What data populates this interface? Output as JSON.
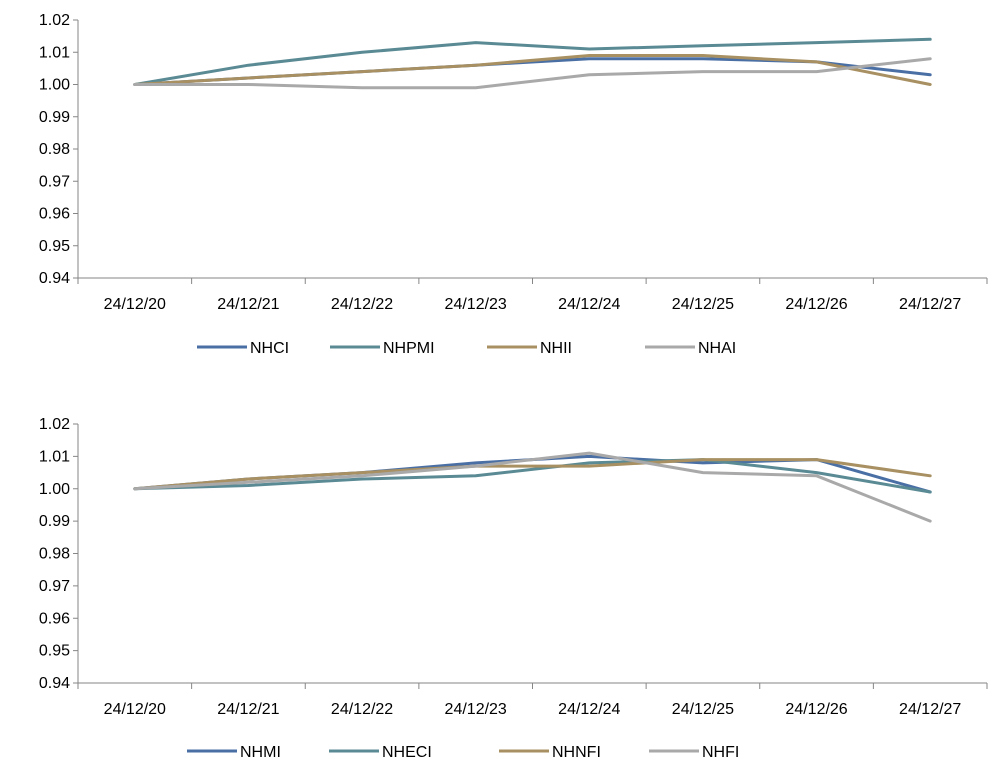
{
  "chart_data": [
    {
      "type": "line",
      "categories": [
        "24/12/20",
        "24/12/21",
        "24/12/22",
        "24/12/23",
        "24/12/24",
        "24/12/25",
        "24/12/26",
        "24/12/27"
      ],
      "ylim": [
        0.94,
        1.02
      ],
      "yticks": [
        0.94,
        0.95,
        0.96,
        0.97,
        0.98,
        0.99,
        1.0,
        1.01,
        1.02
      ],
      "ytick_labels": [
        "0.94",
        "0.95",
        "0.96",
        "0.97",
        "0.98",
        "0.99",
        "1.00",
        "1.01",
        "1.02"
      ],
      "grid": false,
      "legend_position": "bottom",
      "series": [
        {
          "name": "NHCI",
          "color": "#4a6fa5",
          "values": [
            1.0,
            1.002,
            1.004,
            1.006,
            1.008,
            1.008,
            1.007,
            1.003
          ]
        },
        {
          "name": "NHPMI",
          "color": "#5a8a94",
          "values": [
            1.0,
            1.006,
            1.01,
            1.013,
            1.011,
            1.012,
            1.013,
            1.014
          ]
        },
        {
          "name": "NHII",
          "color": "#a89062",
          "values": [
            1.0,
            1.002,
            1.004,
            1.006,
            1.009,
            1.009,
            1.007,
            1.0
          ]
        },
        {
          "name": "NHAI",
          "color": "#a9a9a9",
          "values": [
            1.0,
            1.0,
            0.999,
            0.999,
            1.003,
            1.004,
            1.004,
            1.008
          ]
        }
      ]
    },
    {
      "type": "line",
      "categories": [
        "24/12/20",
        "24/12/21",
        "24/12/22",
        "24/12/23",
        "24/12/24",
        "24/12/25",
        "24/12/26",
        "24/12/27"
      ],
      "ylim": [
        0.94,
        1.02
      ],
      "yticks": [
        0.94,
        0.95,
        0.96,
        0.97,
        0.98,
        0.99,
        1.0,
        1.01,
        1.02
      ],
      "ytick_labels": [
        "0.94",
        "0.95",
        "0.96",
        "0.97",
        "0.98",
        "0.99",
        "1.00",
        "1.01",
        "1.02"
      ],
      "grid": false,
      "legend_position": "bottom",
      "series": [
        {
          "name": "NHMI",
          "color": "#4a6fa5",
          "values": [
            1.0,
            1.003,
            1.005,
            1.008,
            1.01,
            1.008,
            1.009,
            0.999
          ]
        },
        {
          "name": "NHECI",
          "color": "#5a8a94",
          "values": [
            1.0,
            1.001,
            1.003,
            1.004,
            1.008,
            1.009,
            1.005,
            0.999
          ]
        },
        {
          "name": "NHNFI",
          "color": "#a89062",
          "values": [
            1.0,
            1.003,
            1.005,
            1.007,
            1.007,
            1.009,
            1.009,
            1.004
          ]
        },
        {
          "name": "NHFI",
          "color": "#a9a9a9",
          "values": [
            1.0,
            1.002,
            1.004,
            1.007,
            1.011,
            1.005,
            1.004,
            0.99
          ]
        }
      ]
    }
  ]
}
